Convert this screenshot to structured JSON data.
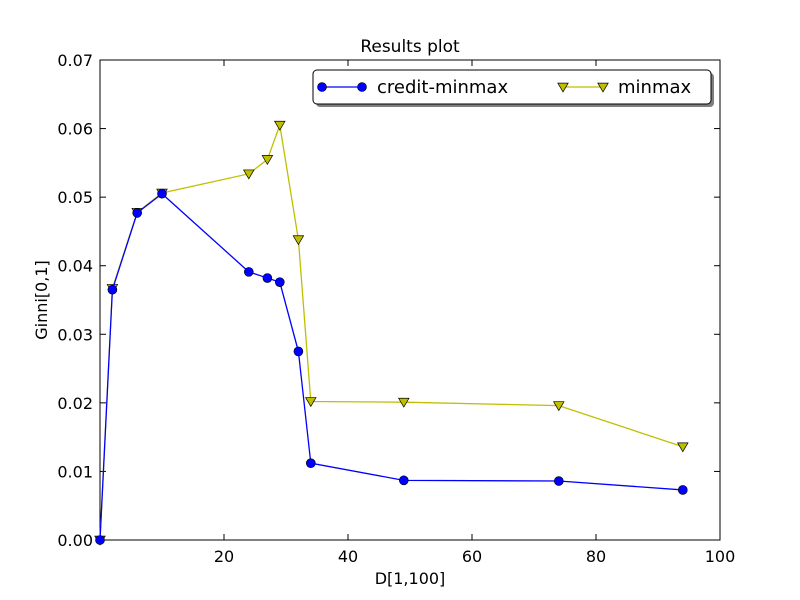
{
  "chart_data": {
    "type": "line",
    "title": "Results plot",
    "xlabel": "D[1,100]",
    "ylabel": "Ginni[0,1]",
    "xlim": [
      0,
      100
    ],
    "ylim": [
      0,
      0.07
    ],
    "x_ticks": [
      20,
      40,
      60,
      80,
      100
    ],
    "x_tick_labels": [
      "20",
      "40",
      "60",
      "80",
      "100"
    ],
    "y_ticks": [
      0,
      0.01,
      0.02,
      0.03,
      0.04,
      0.05,
      0.06,
      0.07
    ],
    "y_tick_labels": [
      "0.00",
      "0.01",
      "0.02",
      "0.03",
      "0.04",
      "0.05",
      "0.06",
      "0.07"
    ],
    "grid": false,
    "legend_position": "top-right",
    "series": [
      {
        "name": "credit-minmax",
        "color": "#0000ff",
        "marker": "circle",
        "points": [
          [
            0,
            0.0
          ],
          [
            2,
            0.0365
          ],
          [
            6,
            0.0477
          ],
          [
            10,
            0.0505
          ],
          [
            24,
            0.0391
          ],
          [
            27,
            0.0382
          ],
          [
            29,
            0.0376
          ],
          [
            32,
            0.0275
          ],
          [
            34,
            0.0112
          ],
          [
            49,
            0.0087
          ],
          [
            74,
            0.0086
          ],
          [
            94,
            0.0073
          ]
        ]
      },
      {
        "name": "minmax",
        "color": "#bfbf00",
        "marker": "triangle-down",
        "points": [
          [
            0,
            0.0
          ],
          [
            2,
            0.0367
          ],
          [
            6,
            0.0478
          ],
          [
            10,
            0.0506
          ],
          [
            24,
            0.0534
          ],
          [
            27,
            0.0555
          ],
          [
            29,
            0.0605
          ],
          [
            32,
            0.0438
          ],
          [
            34,
            0.0202
          ],
          [
            49,
            0.0201
          ],
          [
            74,
            0.0196
          ],
          [
            94,
            0.0136
          ]
        ]
      }
    ]
  }
}
